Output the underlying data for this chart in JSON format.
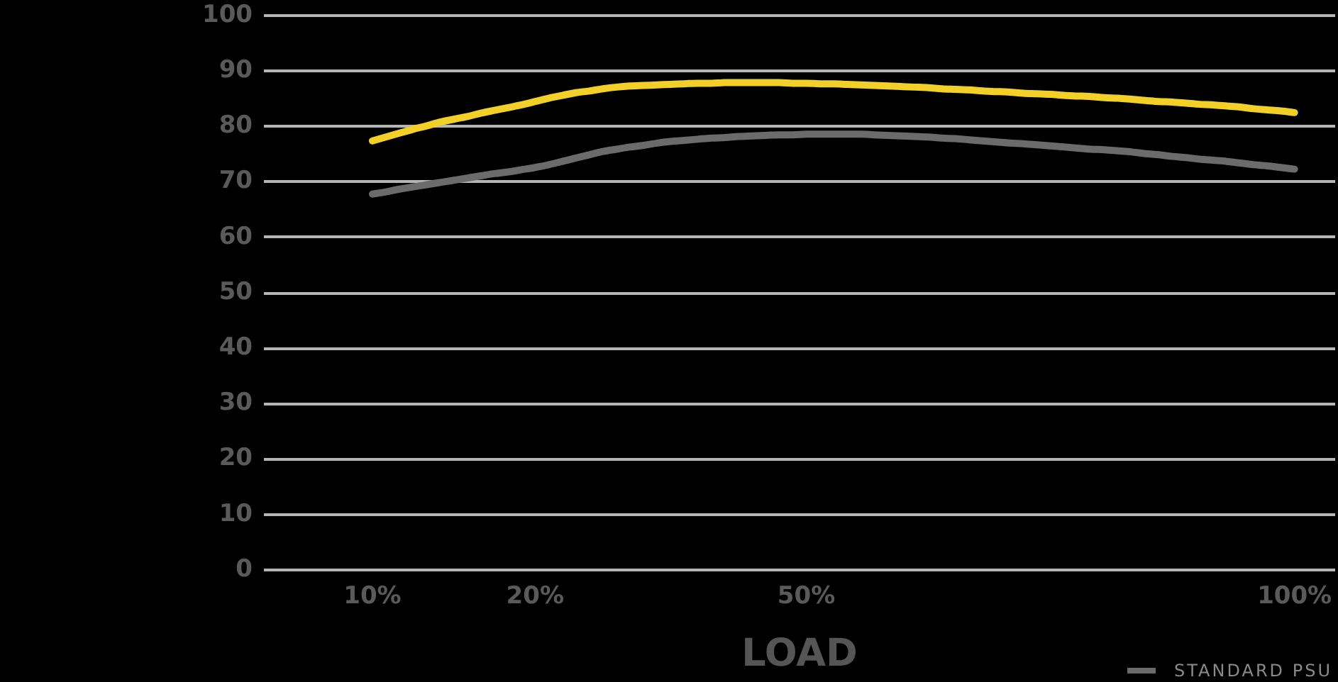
{
  "chart_data": {
    "type": "line",
    "xlabel": "LOAD",
    "categories": [
      null,
      null,
      null,
      null,
      null,
      null,
      null,
      null,
      "10%",
      null,
      null,
      null,
      null,
      null,
      null,
      null,
      null,
      null,
      null,
      null,
      "20%",
      null,
      null,
      null,
      null,
      null,
      null,
      null,
      null,
      null,
      null,
      null,
      null,
      null,
      null,
      null,
      null,
      null,
      null,
      null,
      "50%",
      null,
      null,
      null,
      null,
      null,
      null,
      null,
      null,
      null,
      null,
      null,
      null,
      null,
      null,
      null,
      null,
      null,
      null,
      null,
      null,
      null,
      null,
      null,
      null,
      null,
      null,
      null,
      null,
      null,
      null,
      null,
      null,
      null,
      null,
      null,
      "100%",
      null,
      null,
      null
    ],
    "series": [
      {
        "color": "#f2d027",
        "values": [
          null,
          null,
          null,
          null,
          null,
          null,
          null,
          null,
          77.4,
          78.1,
          78.8,
          79.5,
          80.1,
          80.8,
          81.3,
          81.8,
          82.4,
          82.9,
          83.4,
          83.9,
          84.5,
          85.1,
          85.6,
          86.1,
          86.4,
          86.8,
          87.1,
          87.3,
          87.4,
          87.5,
          87.6,
          87.7,
          87.8,
          87.8,
          87.9,
          87.9,
          87.9,
          87.9,
          87.9,
          87.8,
          87.8,
          87.7,
          87.7,
          87.6,
          87.5,
          87.4,
          87.3,
          87.2,
          87.1,
          87.0,
          86.8,
          86.7,
          86.6,
          86.4,
          86.3,
          86.2,
          86.0,
          85.9,
          85.8,
          85.6,
          85.5,
          85.4,
          85.2,
          85.1,
          84.9,
          84.7,
          84.5,
          84.4,
          84.2,
          84.0,
          83.9,
          83.7,
          83.5,
          83.2,
          83.0,
          82.8,
          82.5,
          null,
          null,
          null
        ]
      },
      {
        "name": "STANDARD PSU",
        "color": "#6b6b6b",
        "values": [
          null,
          null,
          null,
          null,
          null,
          null,
          null,
          null,
          67.8,
          68.2,
          68.7,
          69.1,
          69.5,
          69.9,
          70.3,
          70.7,
          71.1,
          71.5,
          71.8,
          72.2,
          72.6,
          73.1,
          73.7,
          74.3,
          74.9,
          75.5,
          75.9,
          76.3,
          76.6,
          77.0,
          77.3,
          77.5,
          77.7,
          77.9,
          78.0,
          78.2,
          78.3,
          78.4,
          78.5,
          78.5,
          78.6,
          78.6,
          78.6,
          78.6,
          78.6,
          78.5,
          78.4,
          78.3,
          78.2,
          78.1,
          77.9,
          77.8,
          77.6,
          77.4,
          77.2,
          77.0,
          76.9,
          76.7,
          76.5,
          76.3,
          76.1,
          75.9,
          75.8,
          75.6,
          75.4,
          75.1,
          74.9,
          74.6,
          74.4,
          74.1,
          73.9,
          73.7,
          73.4,
          73.1,
          72.9,
          72.6,
          72.3,
          null,
          null,
          null
        ]
      }
    ],
    "ylim": [
      0,
      100
    ],
    "yticks": [
      0,
      10,
      20,
      30,
      40,
      50,
      60,
      70,
      80,
      90,
      100
    ],
    "grid": "y",
    "legend": "bottom right",
    "marker": "none",
    "line_style": "solid"
  }
}
